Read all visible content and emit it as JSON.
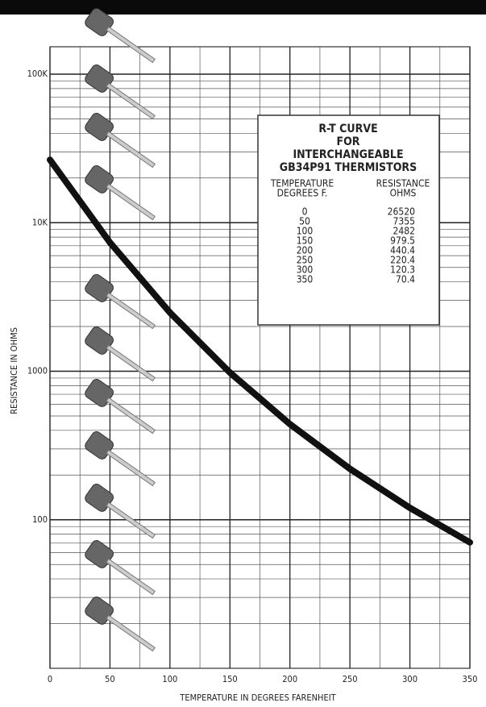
{
  "chart_data": {
    "type": "line",
    "title_lines": [
      "R-T CURVE",
      "FOR",
      "INTERCHANGEABLE",
      "GB34P91 THERMISTORS"
    ],
    "table_headers": [
      [
        "TEMPERATURE",
        "DEGREES F."
      ],
      [
        "RESISTANCE",
        "OHMS"
      ]
    ],
    "x_label": "TEMPERATURE IN DEGREES FARENHEIT",
    "y_label": "RESISTANCE IN OHMS",
    "x": [
      0,
      50,
      100,
      150,
      200,
      250,
      300,
      350
    ],
    "series": [
      {
        "color": "#111111",
        "values": [
          26520,
          7355,
          2482,
          979.5,
          440.4,
          220.4,
          120.3,
          70.4
        ]
      }
    ],
    "xlim": [
      0,
      350
    ],
    "xticks": [
      0,
      50,
      100,
      150,
      200,
      250,
      300,
      350
    ],
    "ylim": [
      10,
      100000
    ],
    "log_y": true,
    "yticks": [
      {
        "value": 100000,
        "label": "100K"
      },
      {
        "value": 10000,
        "label": "10K"
      },
      1000,
      100
    ],
    "grid": true
  }
}
